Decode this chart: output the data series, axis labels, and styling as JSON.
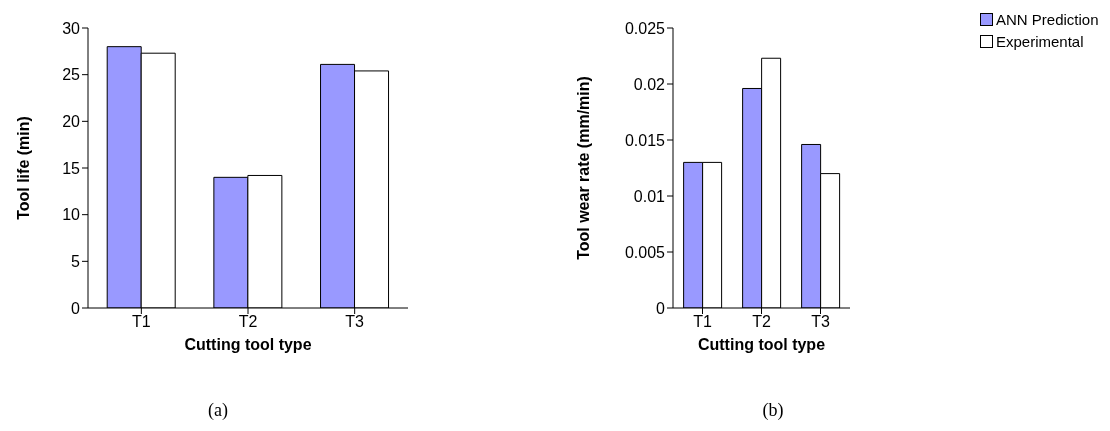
{
  "chart_data": [
    {
      "type": "bar",
      "categories": [
        "T1",
        "T2",
        "T3"
      ],
      "xlabel": "Cutting tool type",
      "ylabel": "Tool life (min)",
      "ylim": [
        0,
        30
      ],
      "yticks": [
        0,
        5,
        10,
        15,
        20,
        25,
        30
      ],
      "grid": false,
      "legend": false,
      "annotations": [
        "(a)"
      ],
      "series": [
        {
          "color": "#9999ff",
          "values": [
            28,
            14,
            26.1
          ]
        },
        {
          "color": "#ffffff",
          "values": [
            27.3,
            14.2,
            25.4
          ]
        }
      ]
    },
    {
      "type": "bar",
      "categories": [
        "T1",
        "T2",
        "T3"
      ],
      "xlabel": "Cutting tool type",
      "ylabel": "Tool wear rate (mm/min)",
      "ylim": [
        0,
        0.025
      ],
      "yticks": [
        0,
        0.005,
        0.01,
        0.015,
        0.02,
        0.025
      ],
      "grid": false,
      "legend": "top right",
      "annotations": [
        "(b)"
      ],
      "series": [
        {
          "name": "ANN Prediction",
          "color": "#9999ff",
          "values": [
            0.013,
            0.0196,
            0.0146
          ]
        },
        {
          "name": "Experimental",
          "color": "#ffffff",
          "values": [
            0.013,
            0.0223,
            0.012
          ]
        }
      ]
    }
  ]
}
